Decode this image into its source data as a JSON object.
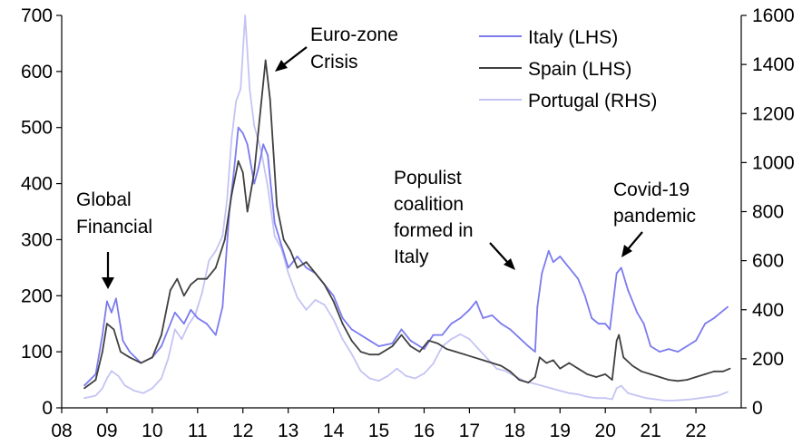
{
  "chart_data": {
    "type": "line",
    "title": "",
    "xlabel": "",
    "ylabel_left": "",
    "ylabel_right": "",
    "x_ticks": [
      "08",
      "09",
      "10",
      "11",
      "12",
      "13",
      "14",
      "15",
      "16",
      "17",
      "18",
      "19",
      "20",
      "21",
      "22"
    ],
    "x_range": [
      2008,
      2023
    ],
    "ylim_left": [
      0,
      700
    ],
    "yticks_left": [
      "0",
      "100",
      "200",
      "300",
      "400",
      "500",
      "600",
      "700"
    ],
    "ylim_right": [
      0,
      1600
    ],
    "yticks_right": [
      "0",
      "200",
      "400",
      "600",
      "800",
      "1000",
      "1200",
      "1400",
      "1600"
    ],
    "grid": false,
    "legend_position": "top-right",
    "series": [
      {
        "name": "Italy (LHS)",
        "axis": "left",
        "color": "#7b7bef",
        "points": [
          [
            2008.5,
            40
          ],
          [
            2008.75,
            60
          ],
          [
            2008.9,
            130
          ],
          [
            2009.0,
            190
          ],
          [
            2009.1,
            170
          ],
          [
            2009.2,
            195
          ],
          [
            2009.35,
            120
          ],
          [
            2009.5,
            100
          ],
          [
            2009.75,
            80
          ],
          [
            2010.0,
            90
          ],
          [
            2010.2,
            110
          ],
          [
            2010.35,
            140
          ],
          [
            2010.5,
            170
          ],
          [
            2010.7,
            150
          ],
          [
            2010.85,
            175
          ],
          [
            2011.0,
            160
          ],
          [
            2011.2,
            150
          ],
          [
            2011.4,
            130
          ],
          [
            2011.55,
            180
          ],
          [
            2011.7,
            350
          ],
          [
            2011.8,
            420
          ],
          [
            2011.9,
            500
          ],
          [
            2012.0,
            490
          ],
          [
            2012.1,
            470
          ],
          [
            2012.25,
            400
          ],
          [
            2012.35,
            430
          ],
          [
            2012.45,
            470
          ],
          [
            2012.55,
            450
          ],
          [
            2012.7,
            330
          ],
          [
            2012.85,
            290
          ],
          [
            2013.0,
            250
          ],
          [
            2013.2,
            270
          ],
          [
            2013.4,
            250
          ],
          [
            2013.6,
            240
          ],
          [
            2013.8,
            220
          ],
          [
            2014.0,
            200
          ],
          [
            2014.2,
            160
          ],
          [
            2014.4,
            140
          ],
          [
            2014.6,
            130
          ],
          [
            2014.8,
            120
          ],
          [
            2015.0,
            110
          ],
          [
            2015.3,
            115
          ],
          [
            2015.5,
            140
          ],
          [
            2015.7,
            120
          ],
          [
            2015.9,
            110
          ],
          [
            2016.0,
            105
          ],
          [
            2016.2,
            130
          ],
          [
            2016.4,
            130
          ],
          [
            2016.6,
            150
          ],
          [
            2016.8,
            160
          ],
          [
            2017.0,
            175
          ],
          [
            2017.15,
            190
          ],
          [
            2017.3,
            160
          ],
          [
            2017.5,
            165
          ],
          [
            2017.7,
            150
          ],
          [
            2017.9,
            140
          ],
          [
            2018.1,
            125
          ],
          [
            2018.3,
            110
          ],
          [
            2018.45,
            100
          ],
          [
            2018.5,
            180
          ],
          [
            2018.6,
            240
          ],
          [
            2018.75,
            280
          ],
          [
            2018.85,
            260
          ],
          [
            2019.0,
            270
          ],
          [
            2019.2,
            250
          ],
          [
            2019.4,
            230
          ],
          [
            2019.55,
            200
          ],
          [
            2019.7,
            160
          ],
          [
            2019.85,
            150
          ],
          [
            2020.0,
            150
          ],
          [
            2020.1,
            140
          ],
          [
            2020.25,
            240
          ],
          [
            2020.35,
            250
          ],
          [
            2020.5,
            210
          ],
          [
            2020.7,
            170
          ],
          [
            2020.85,
            150
          ],
          [
            2021.0,
            110
          ],
          [
            2021.2,
            100
          ],
          [
            2021.4,
            105
          ],
          [
            2021.6,
            100
          ],
          [
            2021.8,
            110
          ],
          [
            2022.0,
            120
          ],
          [
            2022.2,
            150
          ],
          [
            2022.4,
            160
          ],
          [
            2022.55,
            170
          ],
          [
            2022.7,
            180
          ]
        ]
      },
      {
        "name": "Spain (LHS)",
        "axis": "left",
        "color": "#404040",
        "points": [
          [
            2008.5,
            35
          ],
          [
            2008.75,
            50
          ],
          [
            2008.9,
            100
          ],
          [
            2009.0,
            150
          ],
          [
            2009.15,
            140
          ],
          [
            2009.3,
            100
          ],
          [
            2009.5,
            90
          ],
          [
            2009.75,
            80
          ],
          [
            2010.0,
            90
          ],
          [
            2010.2,
            130
          ],
          [
            2010.4,
            210
          ],
          [
            2010.55,
            230
          ],
          [
            2010.7,
            200
          ],
          [
            2010.85,
            220
          ],
          [
            2011.0,
            230
          ],
          [
            2011.2,
            230
          ],
          [
            2011.4,
            250
          ],
          [
            2011.6,
            300
          ],
          [
            2011.75,
            380
          ],
          [
            2011.9,
            440
          ],
          [
            2012.0,
            420
          ],
          [
            2012.1,
            350
          ],
          [
            2012.25,
            420
          ],
          [
            2012.4,
            540
          ],
          [
            2012.5,
            620
          ],
          [
            2012.6,
            550
          ],
          [
            2012.75,
            360
          ],
          [
            2012.9,
            300
          ],
          [
            2013.05,
            280
          ],
          [
            2013.2,
            250
          ],
          [
            2013.4,
            260
          ],
          [
            2013.6,
            240
          ],
          [
            2013.8,
            220
          ],
          [
            2014.0,
            190
          ],
          [
            2014.2,
            150
          ],
          [
            2014.4,
            120
          ],
          [
            2014.6,
            100
          ],
          [
            2014.8,
            95
          ],
          [
            2015.0,
            95
          ],
          [
            2015.3,
            110
          ],
          [
            2015.5,
            130
          ],
          [
            2015.7,
            110
          ],
          [
            2015.9,
            100
          ],
          [
            2016.1,
            120
          ],
          [
            2016.3,
            115
          ],
          [
            2016.5,
            105
          ],
          [
            2016.7,
            100
          ],
          [
            2016.9,
            95
          ],
          [
            2017.1,
            90
          ],
          [
            2017.3,
            85
          ],
          [
            2017.5,
            80
          ],
          [
            2017.7,
            75
          ],
          [
            2017.9,
            65
          ],
          [
            2018.1,
            50
          ],
          [
            2018.3,
            45
          ],
          [
            2018.45,
            55
          ],
          [
            2018.55,
            90
          ],
          [
            2018.7,
            80
          ],
          [
            2018.85,
            85
          ],
          [
            2019.0,
            70
          ],
          [
            2019.2,
            80
          ],
          [
            2019.4,
            70
          ],
          [
            2019.6,
            60
          ],
          [
            2019.8,
            55
          ],
          [
            2020.0,
            60
          ],
          [
            2020.15,
            50
          ],
          [
            2020.25,
            120
          ],
          [
            2020.3,
            130
          ],
          [
            2020.4,
            90
          ],
          [
            2020.6,
            75
          ],
          [
            2020.8,
            65
          ],
          [
            2021.0,
            60
          ],
          [
            2021.2,
            55
          ],
          [
            2021.4,
            50
          ],
          [
            2021.6,
            48
          ],
          [
            2021.8,
            50
          ],
          [
            2022.0,
            55
          ],
          [
            2022.2,
            60
          ],
          [
            2022.4,
            65
          ],
          [
            2022.6,
            65
          ],
          [
            2022.75,
            70
          ]
        ]
      },
      {
        "name": "Portugal (RHS)",
        "axis": "right",
        "color": "#c4c4f4",
        "points": [
          [
            2008.5,
            40
          ],
          [
            2008.75,
            50
          ],
          [
            2008.9,
            80
          ],
          [
            2009.0,
            120
          ],
          [
            2009.1,
            150
          ],
          [
            2009.25,
            130
          ],
          [
            2009.4,
            90
          ],
          [
            2009.6,
            70
          ],
          [
            2009.8,
            60
          ],
          [
            2010.0,
            80
          ],
          [
            2010.2,
            120
          ],
          [
            2010.35,
            200
          ],
          [
            2010.5,
            320
          ],
          [
            2010.65,
            280
          ],
          [
            2010.8,
            340
          ],
          [
            2010.95,
            380
          ],
          [
            2011.1,
            470
          ],
          [
            2011.25,
            600
          ],
          [
            2011.4,
            640
          ],
          [
            2011.55,
            700
          ],
          [
            2011.65,
            850
          ],
          [
            2011.75,
            1100
          ],
          [
            2011.85,
            1250
          ],
          [
            2011.95,
            1300
          ],
          [
            2012.05,
            1600
          ],
          [
            2012.15,
            1300
          ],
          [
            2012.25,
            1150
          ],
          [
            2012.4,
            1050
          ],
          [
            2012.55,
            900
          ],
          [
            2012.7,
            700
          ],
          [
            2012.85,
            650
          ],
          [
            2013.0,
            550
          ],
          [
            2013.2,
            450
          ],
          [
            2013.4,
            400
          ],
          [
            2013.6,
            440
          ],
          [
            2013.8,
            420
          ],
          [
            2014.0,
            360
          ],
          [
            2014.2,
            280
          ],
          [
            2014.4,
            220
          ],
          [
            2014.6,
            150
          ],
          [
            2014.8,
            120
          ],
          [
            2015.0,
            110
          ],
          [
            2015.2,
            130
          ],
          [
            2015.4,
            160
          ],
          [
            2015.6,
            130
          ],
          [
            2015.8,
            120
          ],
          [
            2016.0,
            140
          ],
          [
            2016.2,
            180
          ],
          [
            2016.4,
            250
          ],
          [
            2016.6,
            280
          ],
          [
            2016.8,
            300
          ],
          [
            2017.0,
            280
          ],
          [
            2017.2,
            240
          ],
          [
            2017.4,
            200
          ],
          [
            2017.6,
            160
          ],
          [
            2017.8,
            150
          ],
          [
            2018.0,
            130
          ],
          [
            2018.2,
            110
          ],
          [
            2018.4,
            100
          ],
          [
            2018.6,
            90
          ],
          [
            2018.8,
            80
          ],
          [
            2019.0,
            70
          ],
          [
            2019.2,
            60
          ],
          [
            2019.4,
            55
          ],
          [
            2019.6,
            45
          ],
          [
            2019.8,
            40
          ],
          [
            2020.0,
            40
          ],
          [
            2020.15,
            35
          ],
          [
            2020.25,
            80
          ],
          [
            2020.35,
            90
          ],
          [
            2020.5,
            60
          ],
          [
            2020.7,
            50
          ],
          [
            2020.9,
            40
          ],
          [
            2021.1,
            35
          ],
          [
            2021.3,
            30
          ],
          [
            2021.5,
            30
          ],
          [
            2021.7,
            32
          ],
          [
            2021.9,
            35
          ],
          [
            2022.1,
            40
          ],
          [
            2022.3,
            45
          ],
          [
            2022.5,
            50
          ],
          [
            2022.7,
            65
          ]
        ]
      }
    ],
    "annotations": [
      {
        "lines": [
          "Global",
          "Financial"
        ]
      },
      {
        "lines": [
          "Euro-zone",
          "Crisis"
        ]
      },
      {
        "lines": [
          "Populist",
          "coalition",
          "formed in",
          "Italy"
        ]
      },
      {
        "lines": [
          "Covid-19",
          "pandemic"
        ]
      }
    ]
  }
}
